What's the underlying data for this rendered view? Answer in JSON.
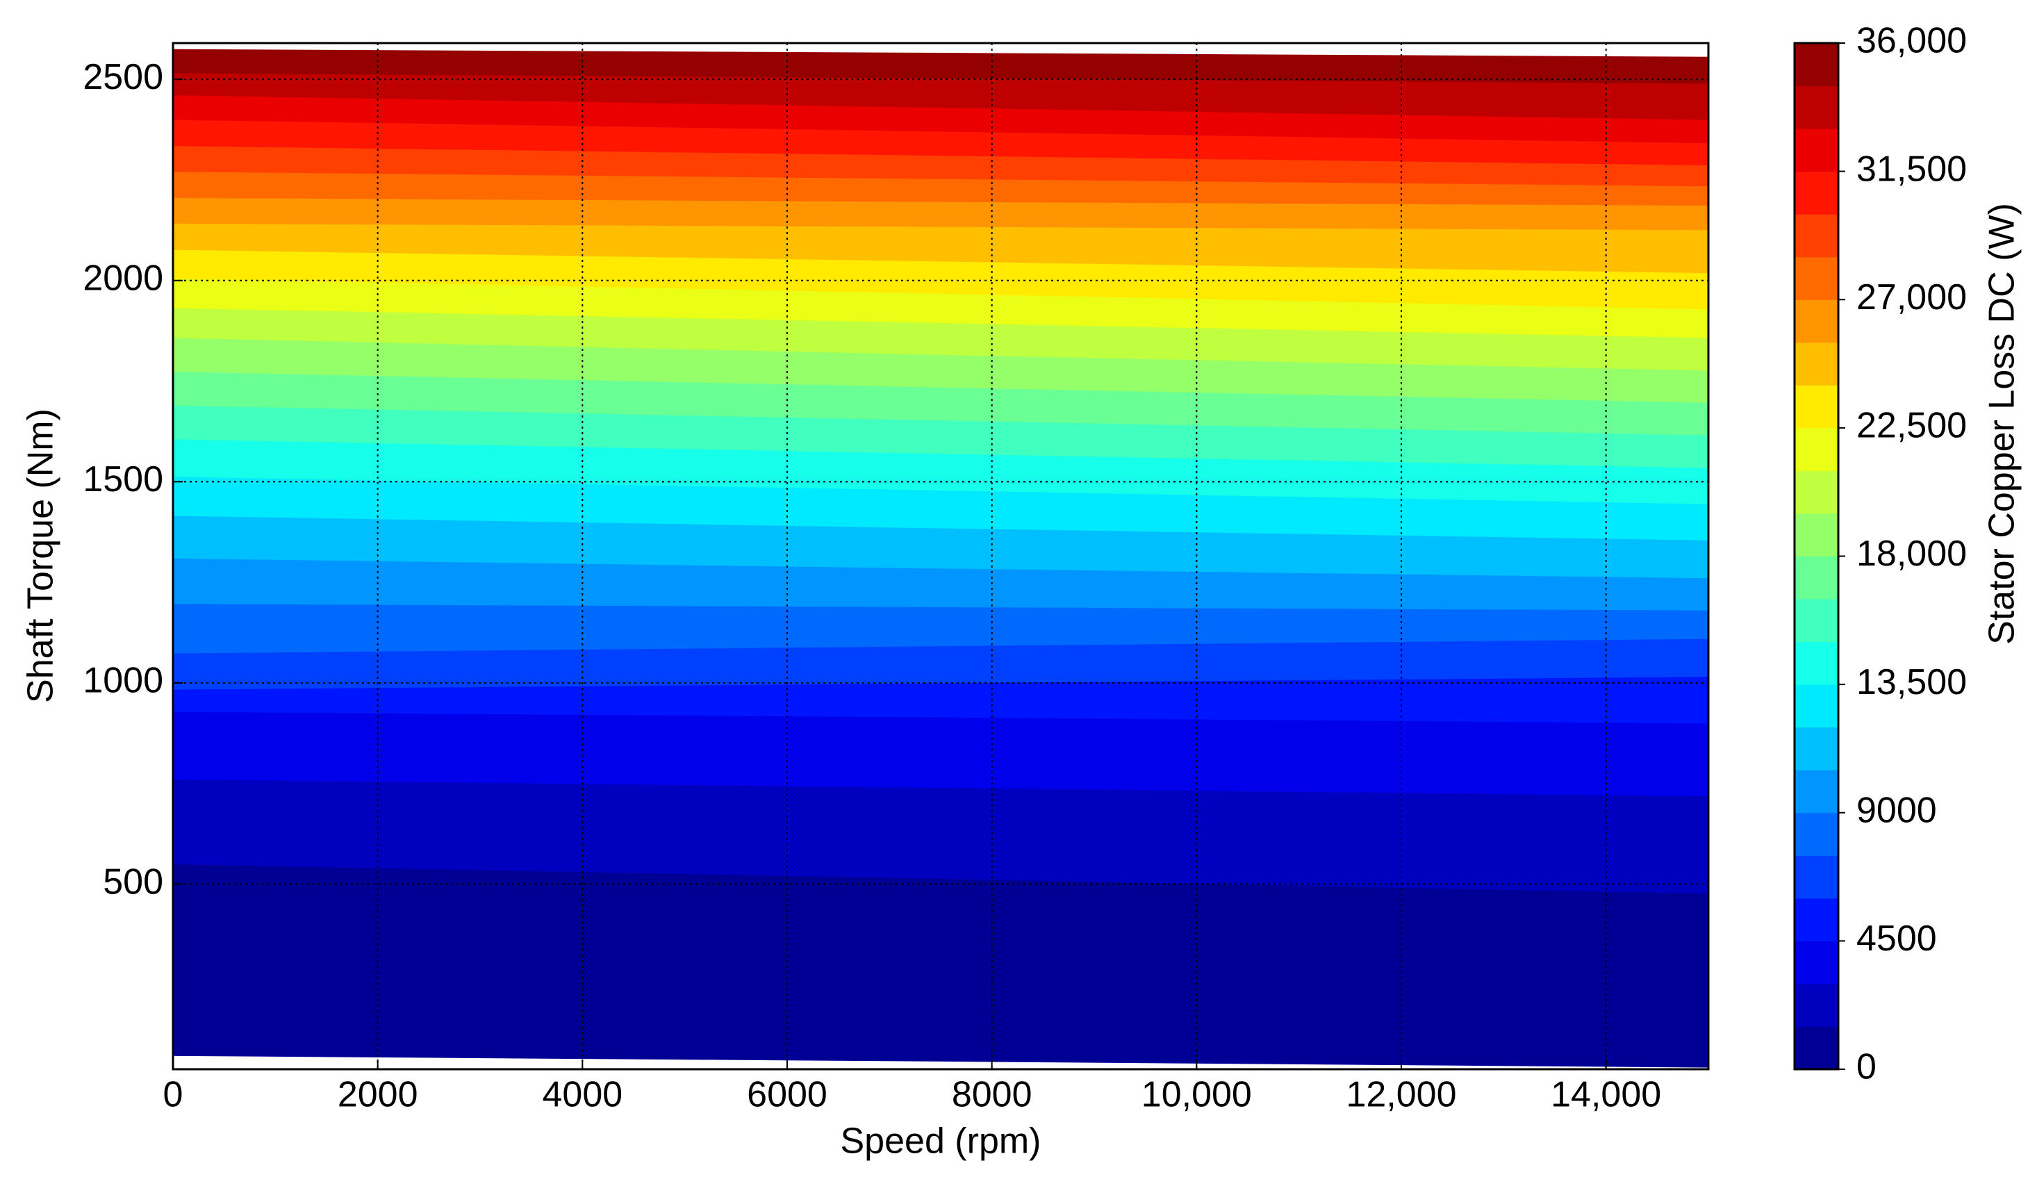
{
  "chart_data": {
    "type": "contour",
    "x_label": "Speed  (rpm)",
    "y_label": "Shaft Torque  (Nm)",
    "colorbar_label": "Stator Copper Loss DC (W)",
    "x": [
      0,
      7500,
      15000
    ],
    "data_bottom": [
      74,
      60,
      45
    ],
    "data_top": [
      2574,
      2565,
      2555
    ],
    "contours": [
      {
        "level": 1500,
        "torque": [
          550,
          514,
          477
        ]
      },
      {
        "level": 3000,
        "torque": [
          761,
          740,
          719
        ]
      },
      {
        "level": 4500,
        "torque": [
          929,
          915,
          900
        ]
      },
      {
        "level": 6000,
        "torque": [
          984,
          1000,
          1016
        ]
      },
      {
        "level": 7500,
        "torque": [
          1074,
          1092,
          1110
        ]
      },
      {
        "level": 9000,
        "torque": [
          1197,
          1189,
          1181
        ]
      },
      {
        "level": 10500,
        "torque": [
          1310,
          1285,
          1261
        ]
      },
      {
        "level": 12000,
        "torque": [
          1416,
          1385,
          1355
        ]
      },
      {
        "level": 13500,
        "torque": [
          1513,
          1479,
          1445
        ]
      },
      {
        "level": 15000,
        "torque": [
          1606,
          1570,
          1535
        ]
      },
      {
        "level": 16500,
        "torque": [
          1690,
          1653,
          1616
        ]
      },
      {
        "level": 18000,
        "torque": [
          1774,
          1735,
          1697
        ]
      },
      {
        "level": 19500,
        "torque": [
          1858,
          1816,
          1777
        ]
      },
      {
        "level": 21000,
        "torque": [
          1932,
          1895,
          1858
        ]
      },
      {
        "level": 22500,
        "torque": [
          2006,
          1968,
          1929
        ]
      },
      {
        "level": 24000,
        "torque": [
          2077,
          2048,
          2019
        ]
      },
      {
        "level": 25500,
        "torque": [
          2142,
          2134,
          2126
        ]
      },
      {
        "level": 27000,
        "torque": [
          2206,
          2196,
          2187
        ]
      },
      {
        "level": 28500,
        "torque": [
          2271,
          2253,
          2235
        ]
      },
      {
        "level": 30000,
        "torque": [
          2335,
          2311,
          2287
        ]
      },
      {
        "level": 31500,
        "torque": [
          2400,
          2371,
          2342
        ]
      },
      {
        "level": 33000,
        "torque": [
          2461,
          2430,
          2400
        ]
      },
      {
        "level": 34500,
        "torque": [
          2516,
          2503,
          2490
        ]
      }
    ],
    "clim": [
      0,
      36000
    ],
    "colormap": "jet",
    "cticks": [
      0,
      4500,
      9000,
      {
        "value": 13500,
        "label": "13,500"
      },
      {
        "value": 18000,
        "label": "18,000"
      },
      {
        "value": 22500,
        "label": "22,500"
      },
      {
        "value": 27000,
        "label": "27,000"
      },
      {
        "value": 31500,
        "label": "31,500"
      },
      {
        "value": 36000,
        "label": "36,000"
      }
    ],
    "xlim": [
      0,
      15000
    ],
    "ylim": [
      40,
      2590
    ],
    "xticks": [
      0,
      2000,
      4000,
      6000,
      8000,
      {
        "value": 10000,
        "label": "10,000"
      },
      {
        "value": 12000,
        "label": "12,000"
      },
      {
        "value": 14000,
        "label": "14,000"
      }
    ],
    "yticks": [
      500,
      1000,
      1500,
      2000,
      2500
    ],
    "grid": true
  }
}
